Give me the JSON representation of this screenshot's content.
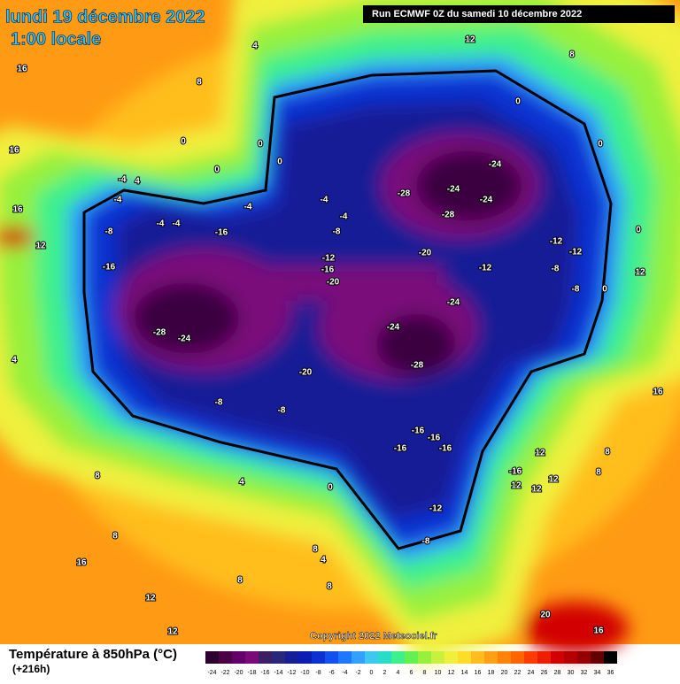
{
  "title": "lundi 19 décembre 2022",
  "subtitle": "1:00 locale",
  "run": "Run ECMWF 0Z du samedi 10 décembre 2022",
  "copyright": "Copyright 2022 Meteociel.fr",
  "legend": {
    "title": "Température à 850hPa (°C)",
    "lead": "(+216h)",
    "ticks": [
      -24,
      -22,
      -20,
      -18,
      -16,
      -14,
      -12,
      -10,
      -8,
      -6,
      -4,
      -2,
      0,
      2,
      4,
      6,
      8,
      10,
      12,
      14,
      16,
      18,
      20,
      22,
      24,
      26,
      28,
      30,
      32,
      34,
      36
    ],
    "colors": [
      "#2d0030",
      "#4b0048",
      "#64006a",
      "#7a0a7a",
      "#3c1e64",
      "#28287a",
      "#141e96",
      "#0a1eb4",
      "#0a32d2",
      "#1450f0",
      "#1e78ff",
      "#32a0ff",
      "#3cc8f0",
      "#28dcc8",
      "#3cf08c",
      "#64f050",
      "#96f03c",
      "#c8f03c",
      "#f0f03c",
      "#ffdc28",
      "#ffbe1e",
      "#ffa014",
      "#ff820a",
      "#ff6400",
      "#ff3c00",
      "#f01e00",
      "#d20000",
      "#b40000",
      "#960000",
      "#640000",
      "#000000"
    ]
  },
  "contour_labels": [
    16,
    16,
    16,
    12,
    4,
    8,
    0,
    0,
    0,
    0,
    -4,
    4,
    -4,
    -4,
    -4,
    -8,
    -16,
    -16,
    -4,
    -4,
    -4,
    -8,
    -12,
    -16,
    -20,
    -20,
    -24,
    -24,
    -24,
    -28,
    -28,
    -12,
    -12,
    -12,
    -8,
    -8,
    -24,
    -24,
    -28,
    -20,
    -24,
    -28,
    -8,
    -8,
    -16,
    -16,
    -16,
    -16,
    -12,
    -8,
    0,
    4,
    8,
    8,
    16,
    12,
    8,
    8,
    4,
    8,
    -16,
    12,
    12,
    12,
    12,
    8,
    8,
    12,
    16,
    0,
    0,
    0,
    0,
    12,
    8,
    20,
    16,
    12,
    4
  ]
}
